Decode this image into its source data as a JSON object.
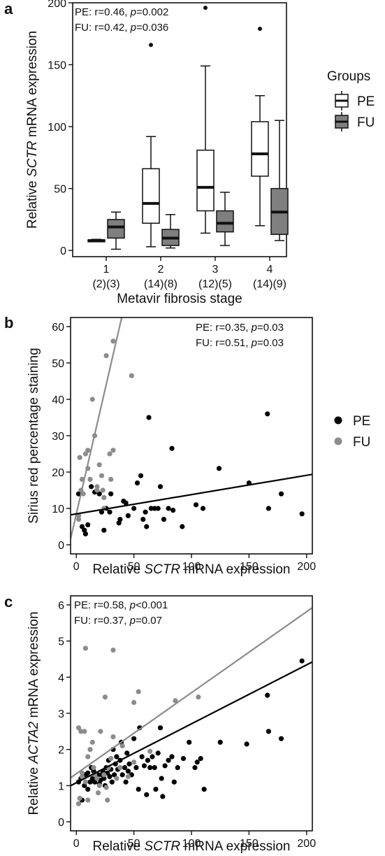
{
  "chart_data": [
    {
      "panel": "a",
      "type": "box",
      "xlabel": "Metavir fibrosis stage",
      "ylabel_parts": [
        "Relative ",
        "SCTR",
        " mRNA expression"
      ],
      "ylim": [
        -5,
        200
      ],
      "yticks": [
        0,
        50,
        100,
        150,
        200
      ],
      "categories": [
        "1",
        "2",
        "3",
        "4"
      ],
      "category_counts": [
        "(2)(3)",
        "(14)(8)",
        "(12)(5)",
        "(14)(9)"
      ],
      "annotations": [
        {
          "label": "PE: r=0.46, ",
          "p_letter": "p",
          "p_value": "=0.002"
        },
        {
          "label": "FU: r=0.42, ",
          "p_letter": "p",
          "p_value": "=0.036"
        }
      ],
      "legend_title": "Groups",
      "legend_position": "right",
      "series": [
        {
          "name": "PE",
          "color": "#ffffff",
          "boxes": [
            {
              "min": 7,
              "q1": 7,
              "median": 8,
              "q3": 8.5,
              "max": 9,
              "outliers": []
            },
            {
              "min": 3,
              "q1": 22,
              "median": 38,
              "q3": 66,
              "max": 92,
              "outliers": [
                166
              ]
            },
            {
              "min": 14,
              "q1": 32,
              "median": 51,
              "q3": 81,
              "max": 149,
              "outliers": [
                196
              ]
            },
            {
              "min": 20,
              "q1": 60,
              "median": 78,
              "q3": 104,
              "max": 125,
              "outliers": [
                179
              ]
            }
          ]
        },
        {
          "name": "FU",
          "color": "#7f7f7f",
          "boxes": [
            {
              "min": 1,
              "q1": 10,
              "median": 19,
              "q3": 25,
              "max": 31,
              "outliers": []
            },
            {
              "min": 2,
              "q1": 4,
              "median": 10,
              "q3": 17,
              "max": 29,
              "outliers": []
            },
            {
              "min": 4,
              "q1": 15,
              "median": 22,
              "q3": 32,
              "max": 47,
              "outliers": []
            },
            {
              "min": 8,
              "q1": 13,
              "median": 31,
              "q3": 50,
              "max": 105,
              "outliers": []
            }
          ]
        }
      ]
    },
    {
      "panel": "b",
      "type": "scatter",
      "xlabel_parts": [
        "Relative ",
        "SCTR",
        " mRNA expression"
      ],
      "ylabel": "Sirius red percentage staining",
      "xlim": [
        -5,
        205
      ],
      "ylim": [
        -2.5,
        62.5
      ],
      "xticks": [
        0,
        50,
        100,
        150,
        200
      ],
      "yticks": [
        0,
        10,
        20,
        30,
        40,
        50,
        60
      ],
      "annotations": [
        {
          "label": "PE: r=0.35, ",
          "p_letter": "p",
          "p_value": "=0.03"
        },
        {
          "label": "FU: r=0.51, ",
          "p_letter": "p",
          "p_value": "=0.03"
        }
      ],
      "legend_position": "right",
      "series": [
        {
          "name": "PE",
          "color": "#000000",
          "fit": {
            "intercept": 8.5,
            "slope": 0.053
          },
          "points": [
            [
              2,
              14
            ],
            [
              5,
              5
            ],
            [
              7,
              4
            ],
            [
              8,
              3
            ],
            [
              10,
              5.5
            ],
            [
              13,
              16
            ],
            [
              16,
              14.5
            ],
            [
              20,
              14
            ],
            [
              22,
              9
            ],
            [
              24,
              4
            ],
            [
              26,
              10
            ],
            [
              29,
              9
            ],
            [
              30,
              14
            ],
            [
              37,
              6
            ],
            [
              38,
              7
            ],
            [
              41,
              12
            ],
            [
              43,
              11.5
            ],
            [
              45,
              8
            ],
            [
              50,
              10
            ],
            [
              53,
              17
            ],
            [
              56,
              19
            ],
            [
              58,
              7
            ],
            [
              60,
              9
            ],
            [
              61,
              5
            ],
            [
              63,
              35
            ],
            [
              65,
              10
            ],
            [
              68,
              10
            ],
            [
              71,
              10
            ],
            [
              73,
              16
            ],
            [
              76,
              7
            ],
            [
              80,
              10
            ],
            [
              83,
              26.5
            ],
            [
              84,
              9.5
            ],
            [
              92,
              5
            ],
            [
              104,
              11
            ],
            [
              110,
              10
            ],
            [
              124,
              21
            ],
            [
              150,
              17
            ],
            [
              166,
              36
            ],
            [
              167,
              10
            ],
            [
              178,
              14
            ],
            [
              196,
              8.5
            ]
          ]
        },
        {
          "name": "FU",
          "color": "#8c8c8c",
          "fit": {
            "intercept": 8.5,
            "slope": 1.37
          },
          "points": [
            [
              2,
              8
            ],
            [
              2,
              7
            ],
            [
              3,
              24
            ],
            [
              4,
              15
            ],
            [
              5,
              18
            ],
            [
              6,
              14
            ],
            [
              8,
              25
            ],
            [
              10,
              26
            ],
            [
              10,
              21
            ],
            [
              12,
              18
            ],
            [
              14,
              40
            ],
            [
              16,
              30
            ],
            [
              18,
              16
            ],
            [
              18,
              15
            ],
            [
              20,
              22
            ],
            [
              22,
              19
            ],
            [
              23,
              15
            ],
            [
              24,
              13
            ],
            [
              24,
              10
            ],
            [
              26,
              52
            ],
            [
              29,
              25
            ],
            [
              30,
              18
            ],
            [
              32,
              56
            ],
            [
              32,
              26
            ],
            [
              48,
              46.5
            ]
          ]
        }
      ]
    },
    {
      "panel": "c",
      "type": "scatter",
      "xlabel_parts": [
        "Relative ",
        "SCTR",
        " mRNA expression"
      ],
      "ylabel_parts": [
        "Relative ",
        "ACTA2",
        " mRNA expression"
      ],
      "xlim": [
        -5,
        205
      ],
      "ylim": [
        -0.25,
        6.25
      ],
      "xticks": [
        0,
        50,
        100,
        150,
        200
      ],
      "yticks": [
        0,
        1,
        2,
        3,
        4,
        5,
        6
      ],
      "annotations": [
        {
          "label": "PE: r=0.58, ",
          "p_letter": "p",
          "p_value": "<0.001"
        },
        {
          "label": "FU: r=0.37, ",
          "p_letter": "p",
          "p_value": "=0.07"
        }
      ],
      "series": [
        {
          "name": "PE",
          "color": "#000000",
          "fit": {
            "intercept": 1.08,
            "slope": 0.0163
          },
          "points": [
            [
              2,
              1.1
            ],
            [
              4,
              1.2
            ],
            [
              5,
              0.6
            ],
            [
              7,
              1.0
            ],
            [
              8,
              1.3
            ],
            [
              10,
              1.35
            ],
            [
              10,
              0.9
            ],
            [
              12,
              1.1
            ],
            [
              13,
              1.5
            ],
            [
              14,
              1.2
            ],
            [
              15,
              1.4
            ],
            [
              16,
              1.3
            ],
            [
              16,
              1.1
            ],
            [
              18,
              1.2
            ],
            [
              19,
              1.3
            ],
            [
              20,
              1.05
            ],
            [
              21,
              1.15
            ],
            [
              22,
              1.3
            ],
            [
              23,
              1.4
            ],
            [
              24,
              1.2
            ],
            [
              25,
              1.0
            ],
            [
              26,
              1.5
            ],
            [
              27,
              1.35
            ],
            [
              28,
              1.7
            ],
            [
              29,
              1.25
            ],
            [
              30,
              1.45
            ],
            [
              31,
              1.1
            ],
            [
              32,
              2.0
            ],
            [
              33,
              1.3
            ],
            [
              34,
              1.6
            ],
            [
              35,
              1.8
            ],
            [
              36,
              1.45
            ],
            [
              38,
              1.7
            ],
            [
              39,
              2.2
            ],
            [
              40,
              1.3
            ],
            [
              42,
              1.5
            ],
            [
              43,
              1.1
            ],
            [
              44,
              1.9
            ],
            [
              45,
              1.4
            ],
            [
              46,
              1.6
            ],
            [
              48,
              1.3
            ],
            [
              50,
              2.3
            ],
            [
              52,
              1.5
            ],
            [
              54,
              0.9
            ],
            [
              55,
              2.6
            ],
            [
              57,
              1.8
            ],
            [
              59,
              1.55
            ],
            [
              61,
              0.75
            ],
            [
              62,
              1.7
            ],
            [
              64,
              1.5
            ],
            [
              66,
              1.8
            ],
            [
              68,
              1.5
            ],
            [
              69,
              0.9
            ],
            [
              71,
              1.9
            ],
            [
              73,
              2.6
            ],
            [
              74,
              1.2
            ],
            [
              75,
              0.7
            ],
            [
              77,
              1.55
            ],
            [
              80,
              1.7
            ],
            [
              83,
              1.8
            ],
            [
              85,
              1.1
            ],
            [
              88,
              1.5
            ],
            [
              93,
              1.75
            ],
            [
              98,
              2.2
            ],
            [
              103,
              1.5
            ],
            [
              105,
              1.65
            ],
            [
              108,
              1.75
            ],
            [
              111,
              0.9
            ],
            [
              125,
              2.2
            ],
            [
              148,
              2.15
            ],
            [
              166,
              3.5
            ],
            [
              167,
              2.5
            ],
            [
              178,
              2.3
            ],
            [
              196,
              4.45
            ]
          ]
        },
        {
          "name": "FU",
          "color": "#8c8c8c",
          "fit": {
            "intercept": 1.33,
            "slope": 0.0224
          },
          "points": [
            [
              2,
              2.6
            ],
            [
              2,
              0.5
            ],
            [
              3,
              0.65
            ],
            [
              4,
              2.5
            ],
            [
              5,
              1.35
            ],
            [
              5,
              1.25
            ],
            [
              7,
              2.5
            ],
            [
              8,
              4.8
            ],
            [
              8,
              1.1
            ],
            [
              10,
              1.8
            ],
            [
              10,
              0.6
            ],
            [
              12,
              2.0
            ],
            [
              14,
              2.2
            ],
            [
              15,
              1.5
            ],
            [
              16,
              1.3
            ],
            [
              18,
              1.2
            ],
            [
              19,
              0.8
            ],
            [
              20,
              1.0
            ],
            [
              21,
              2.5
            ],
            [
              24,
              1.3
            ],
            [
              25,
              3.45
            ],
            [
              26,
              0.95
            ],
            [
              27,
              0.6
            ],
            [
              28,
              1.5
            ],
            [
              30,
              1.75
            ],
            [
              32,
              2.35
            ],
            [
              32,
              4.75
            ],
            [
              35,
              1.2
            ],
            [
              38,
              1.5
            ],
            [
              40,
              2.1
            ],
            [
              45,
              1.25
            ],
            [
              50,
              1.65
            ],
            [
              50,
              3.3
            ],
            [
              54,
              3.6
            ],
            [
              64,
              1.95
            ],
            [
              86,
              3.35
            ],
            [
              106,
              3.45
            ]
          ]
        }
      ]
    }
  ]
}
